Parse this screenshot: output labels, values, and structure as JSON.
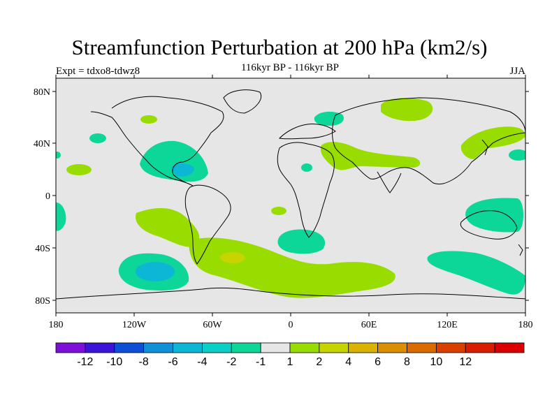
{
  "map": {
    "title": "Streamfunction Perturbation at 200 hPa (km2/s)",
    "subtitle": "116kyr BP - 116kyr BP",
    "left_label": "Expt = tdxo8-tdwz8",
    "right_label": "JJA",
    "lat_ticks": [
      "80N",
      "40N",
      "0",
      "40S",
      "80S"
    ],
    "lon_ticks": [
      "180",
      "120W",
      "60W",
      "0",
      "60E",
      "120E",
      "180"
    ]
  },
  "colorbar": {
    "colors": [
      "#7e0fd8",
      "#3c13d8",
      "#0d4fd6",
      "#1190d9",
      "#0cb7d6",
      "#09cfc6",
      "#0dd699",
      "#e6e6e6",
      "#99dc00",
      "#c7d400",
      "#dbb200",
      "#db8f00",
      "#db6a00",
      "#d94000",
      "#d81e00",
      "#da0000"
    ],
    "labels": [
      "-12",
      "-10",
      "-8",
      "-6",
      "-4",
      "-2",
      "-1",
      "1",
      "2",
      "4",
      "6",
      "8",
      "10",
      "12"
    ]
  }
}
